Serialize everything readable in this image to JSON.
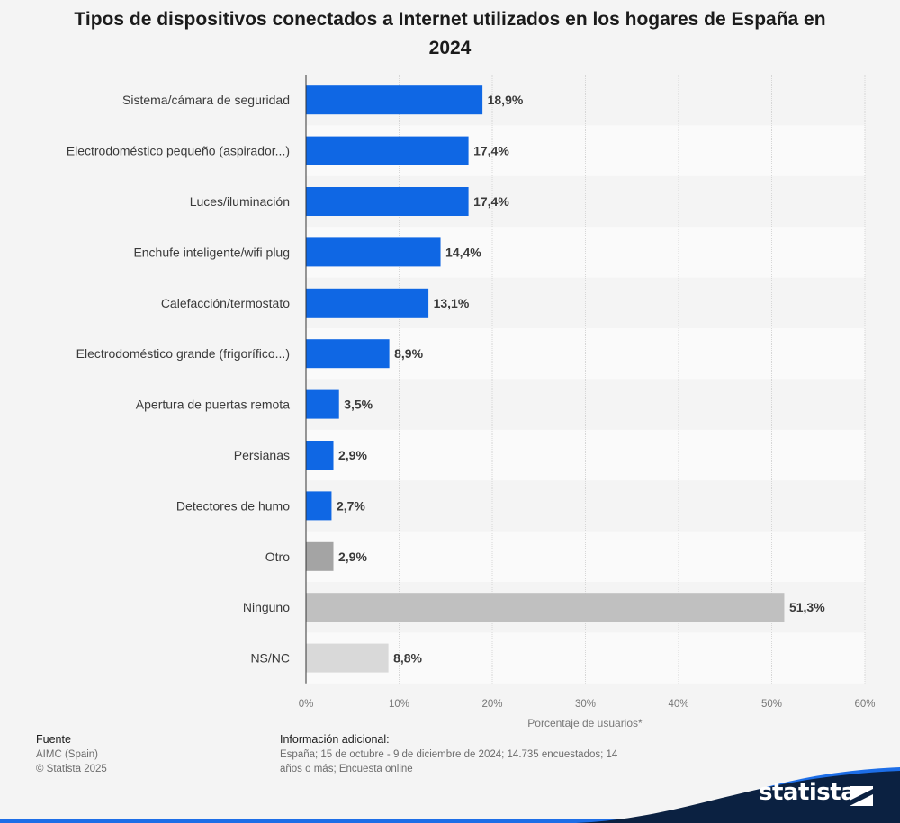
{
  "chart_data": {
    "type": "bar",
    "orientation": "horizontal",
    "title": "Tipos de dispositivos conectados a Internet utilizados en los hogares de España en 2024",
    "categories": [
      "Sistema/cámara de seguridad",
      "Electrodoméstico pequeño (aspirador...)",
      "Luces/iluminación",
      "Enchufe inteligente/wifi plug",
      "Calefacción/termostato",
      "Electrodoméstico grande (frigorífico...)",
      "Apertura de puertas remota",
      "Persianas",
      "Detectores de humo",
      "Otro",
      "Ninguno",
      "NS/NC"
    ],
    "values": [
      18.9,
      17.4,
      17.4,
      14.4,
      13.1,
      8.9,
      3.5,
      2.9,
      2.7,
      2.9,
      51.3,
      8.8
    ],
    "value_labels": [
      "18,9%",
      "17,4%",
      "17,4%",
      "14,4%",
      "13,1%",
      "8,9%",
      "3,5%",
      "2,9%",
      "2,7%",
      "2,9%",
      "51,3%",
      "8,8%"
    ],
    "bar_colors": [
      "#0f67e4",
      "#0f67e4",
      "#0f67e4",
      "#0f67e4",
      "#0f67e4",
      "#0f67e4",
      "#0f67e4",
      "#0f67e4",
      "#0f67e4",
      "#a4a4a4",
      "#c0c0c0",
      "#d9d9d9"
    ],
    "xlabel": "Porcentaje de usuarios*",
    "ylabel": "",
    "xlim": [
      0,
      60
    ],
    "xticks": [
      0,
      10,
      20,
      30,
      40,
      50,
      60
    ],
    "xtick_labels": [
      "0%",
      "10%",
      "20%",
      "30%",
      "40%",
      "50%",
      "60%"
    ],
    "grid": true
  },
  "footer": {
    "source_heading": "Fuente",
    "source_lines": [
      "AIMC (Spain)",
      "© Statista 2025"
    ],
    "info_heading": "Información adicional:",
    "info_lines": [
      "España; 15 de octubre - 9 de diciembre de 2024; 14.735 encuestados; 14",
      "años o más; Encuesta online"
    ]
  },
  "brand": {
    "name": "statista",
    "band_color": "#0b2141",
    "accent_color": "#1d6ee7"
  }
}
